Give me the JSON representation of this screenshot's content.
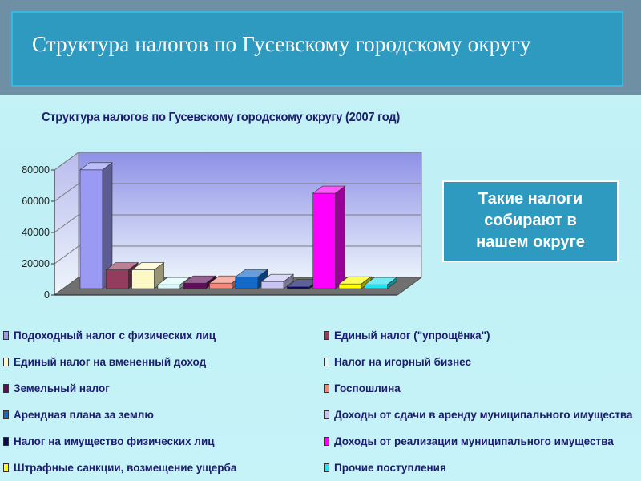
{
  "slide": {
    "title": "Структура налогов по Гусевскому городскому округу",
    "callout": [
      "Такие налоги",
      "собирают в",
      "нашем округе"
    ]
  },
  "chart_data": {
    "type": "bar",
    "title": "Структура налогов по Гусевскому городскому округу (2007 год)",
    "xlabel": "",
    "ylabel": "",
    "ylim": [
      0,
      80000
    ],
    "yticks": [
      "0",
      "20000",
      "40000",
      "60000",
      "80000"
    ],
    "grid": true,
    "legend": "bottom",
    "series": [
      {
        "name": "Подоходный налог с физических лиц",
        "value": 76000,
        "color": "#9a9af5"
      },
      {
        "name": "Единый налог (\"упрощёнка\")",
        "value": 12000,
        "color": "#943c5e"
      },
      {
        "name": "Единый налог на вмененный доход",
        "value": 12000,
        "color": "#fdf9c6"
      },
      {
        "name": "Налог на игорный бизнес",
        "value": 2500,
        "color": "#d8fafc"
      },
      {
        "name": "Земельный налог",
        "value": 3500,
        "color": "#600c5a"
      },
      {
        "name": "Госпошлина",
        "value": 3500,
        "color": "#f28a7c"
      },
      {
        "name": "Арендная плана за землю",
        "value": 7500,
        "color": "#1468c8"
      },
      {
        "name": "Доходы от сдачи в аренду муниципального имущества",
        "value": 4500,
        "color": "#c8c4f4"
      },
      {
        "name": "Налог на имущество физических лиц",
        "value": 1200,
        "color": "#080a60"
      },
      {
        "name": "Доходы от реализации муниципального имущества",
        "value": 61000,
        "color": "#ff00ff"
      },
      {
        "name": "Штрафные санкции, возмещение ущерба",
        "value": 3000,
        "color": "#ffff00"
      },
      {
        "name": "Прочие поступления",
        "value": 2500,
        "color": "#22e2f2"
      }
    ]
  }
}
